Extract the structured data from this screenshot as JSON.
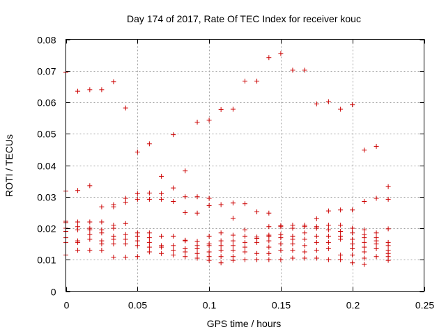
{
  "chart_data": {
    "type": "scatter",
    "title": "Day 174 of 2017, Rate Of TEC Index for receiver kouc",
    "xlabel": "GPS time / hours",
    "ylabel": "ROTI / TECUs",
    "xlim": [
      0,
      0.25
    ],
    "ylim": [
      0,
      0.08
    ],
    "x_ticks": [
      0,
      0.05,
      0.1,
      0.15,
      0.2,
      0.25
    ],
    "y_ticks": [
      0,
      0.01,
      0.02,
      0.03,
      0.04,
      0.05,
      0.06,
      0.07,
      0.08
    ],
    "x_tick_labels": [
      "0",
      "0.05",
      "0.1",
      "0.15",
      "0.2",
      "0.25"
    ],
    "y_tick_labels": [
      "0",
      "0.01",
      "0.02",
      "0.03",
      "0.04",
      "0.05",
      "0.06",
      "0.07",
      "0.08"
    ],
    "grid": true,
    "marker": "+",
    "marker_color": "#cc0000",
    "series": [
      {
        "points": [
          [
            0.0,
            0.0695
          ],
          [
            0.0,
            0.0318
          ],
          [
            0.0,
            0.0222
          ],
          [
            0.0,
            0.0218
          ],
          [
            0.0,
            0.02
          ],
          [
            0.0,
            0.019
          ],
          [
            0.0,
            0.017
          ],
          [
            0.0,
            0.0155
          ],
          [
            0.0,
            0.0115
          ],
          [
            0.0083,
            0.0635
          ],
          [
            0.0083,
            0.032
          ],
          [
            0.0083,
            0.022
          ],
          [
            0.0083,
            0.0205
          ],
          [
            0.0083,
            0.0195
          ],
          [
            0.0083,
            0.016
          ],
          [
            0.0083,
            0.0155
          ],
          [
            0.0083,
            0.013
          ],
          [
            0.0167,
            0.064
          ],
          [
            0.0167,
            0.0335
          ],
          [
            0.0167,
            0.022
          ],
          [
            0.0167,
            0.02
          ],
          [
            0.0167,
            0.0195
          ],
          [
            0.0167,
            0.018
          ],
          [
            0.0167,
            0.0165
          ],
          [
            0.0167,
            0.013
          ],
          [
            0.025,
            0.064
          ],
          [
            0.025,
            0.0268
          ],
          [
            0.025,
            0.022
          ],
          [
            0.025,
            0.0195
          ],
          [
            0.025,
            0.0185
          ],
          [
            0.025,
            0.016
          ],
          [
            0.025,
            0.015
          ],
          [
            0.025,
            0.013
          ],
          [
            0.0333,
            0.0665
          ],
          [
            0.0333,
            0.0275
          ],
          [
            0.0333,
            0.0268
          ],
          [
            0.0333,
            0.021
          ],
          [
            0.0333,
            0.02
          ],
          [
            0.0333,
            0.0175
          ],
          [
            0.0333,
            0.0165
          ],
          [
            0.0333,
            0.015
          ],
          [
            0.0333,
            0.0108
          ],
          [
            0.0417,
            0.0582
          ],
          [
            0.0417,
            0.0295
          ],
          [
            0.0417,
            0.0282
          ],
          [
            0.0417,
            0.0215
          ],
          [
            0.0417,
            0.018
          ],
          [
            0.0417,
            0.0165
          ],
          [
            0.0417,
            0.015
          ],
          [
            0.0417,
            0.0108
          ],
          [
            0.05,
            0.0442
          ],
          [
            0.05,
            0.031
          ],
          [
            0.05,
            0.0292
          ],
          [
            0.05,
            0.0185
          ],
          [
            0.05,
            0.0175
          ],
          [
            0.05,
            0.016
          ],
          [
            0.05,
            0.0145
          ],
          [
            0.05,
            0.011
          ],
          [
            0.0583,
            0.0468
          ],
          [
            0.0583,
            0.0312
          ],
          [
            0.0583,
            0.0292
          ],
          [
            0.0583,
            0.0185
          ],
          [
            0.0583,
            0.017
          ],
          [
            0.0583,
            0.0155
          ],
          [
            0.0583,
            0.014
          ],
          [
            0.0583,
            0.0125
          ],
          [
            0.0667,
            0.0365
          ],
          [
            0.0667,
            0.031
          ],
          [
            0.0667,
            0.0292
          ],
          [
            0.0667,
            0.0175
          ],
          [
            0.0667,
            0.0145
          ],
          [
            0.0667,
            0.014
          ],
          [
            0.0667,
            0.012
          ],
          [
            0.075,
            0.0497
          ],
          [
            0.075,
            0.0328
          ],
          [
            0.075,
            0.0285
          ],
          [
            0.075,
            0.0175
          ],
          [
            0.075,
            0.0145
          ],
          [
            0.075,
            0.013
          ],
          [
            0.075,
            0.0115
          ],
          [
            0.0833,
            0.0382
          ],
          [
            0.0833,
            0.03
          ],
          [
            0.0833,
            0.025
          ],
          [
            0.0833,
            0.0162
          ],
          [
            0.0833,
            0.016
          ],
          [
            0.0833,
            0.0135
          ],
          [
            0.0833,
            0.0125
          ],
          [
            0.0833,
            0.011
          ],
          [
            0.0917,
            0.0537
          ],
          [
            0.0917,
            0.03
          ],
          [
            0.0917,
            0.0248
          ],
          [
            0.0917,
            0.0158
          ],
          [
            0.0917,
            0.0145
          ],
          [
            0.0917,
            0.0135
          ],
          [
            0.0917,
            0.012
          ],
          [
            0.0917,
            0.0105
          ],
          [
            0.1,
            0.0543
          ],
          [
            0.1,
            0.0295
          ],
          [
            0.1,
            0.0272
          ],
          [
            0.1,
            0.0175
          ],
          [
            0.1,
            0.015
          ],
          [
            0.1,
            0.0145
          ],
          [
            0.1,
            0.0125
          ],
          [
            0.1,
            0.011
          ],
          [
            0.1,
            0.0098
          ],
          [
            0.1083,
            0.0577
          ],
          [
            0.1083,
            0.0275
          ],
          [
            0.1083,
            0.0185
          ],
          [
            0.1083,
            0.016
          ],
          [
            0.1083,
            0.0145
          ],
          [
            0.1083,
            0.013
          ],
          [
            0.1083,
            0.011
          ],
          [
            0.1083,
            0.009
          ],
          [
            0.1167,
            0.0578
          ],
          [
            0.1167,
            0.028
          ],
          [
            0.1167,
            0.0232
          ],
          [
            0.1167,
            0.0178
          ],
          [
            0.1167,
            0.016
          ],
          [
            0.1167,
            0.0145
          ],
          [
            0.1167,
            0.013
          ],
          [
            0.1167,
            0.011
          ],
          [
            0.1167,
            0.0098
          ],
          [
            0.125,
            0.0667
          ],
          [
            0.125,
            0.0278
          ],
          [
            0.125,
            0.0195
          ],
          [
            0.125,
            0.0175
          ],
          [
            0.125,
            0.0155
          ],
          [
            0.125,
            0.014
          ],
          [
            0.125,
            0.0125
          ],
          [
            0.125,
            0.01
          ],
          [
            0.1333,
            0.0667
          ],
          [
            0.1333,
            0.0252
          ],
          [
            0.1333,
            0.0172
          ],
          [
            0.1333,
            0.0168
          ],
          [
            0.1333,
            0.0155
          ],
          [
            0.1333,
            0.012
          ],
          [
            0.1333,
            0.01
          ],
          [
            0.1417,
            0.0742
          ],
          [
            0.1417,
            0.0248
          ],
          [
            0.1417,
            0.0205
          ],
          [
            0.1417,
            0.0178
          ],
          [
            0.1417,
            0.0175
          ],
          [
            0.1417,
            0.016
          ],
          [
            0.1417,
            0.014
          ],
          [
            0.1417,
            0.012
          ],
          [
            0.1417,
            0.01
          ],
          [
            0.15,
            0.0755
          ],
          [
            0.15,
            0.0208
          ],
          [
            0.15,
            0.0205
          ],
          [
            0.15,
            0.018
          ],
          [
            0.15,
            0.017
          ],
          [
            0.15,
            0.015
          ],
          [
            0.15,
            0.013
          ],
          [
            0.15,
            0.01
          ],
          [
            0.1583,
            0.0702
          ],
          [
            0.1583,
            0.021
          ],
          [
            0.1583,
            0.02
          ],
          [
            0.1583,
            0.0175
          ],
          [
            0.1583,
            0.0165
          ],
          [
            0.1583,
            0.015
          ],
          [
            0.1583,
            0.013
          ],
          [
            0.1583,
            0.0105
          ],
          [
            0.1667,
            0.0702
          ],
          [
            0.1667,
            0.021
          ],
          [
            0.1667,
            0.0205
          ],
          [
            0.1667,
            0.0185
          ],
          [
            0.1667,
            0.0165
          ],
          [
            0.1667,
            0.0145
          ],
          [
            0.1667,
            0.0125
          ],
          [
            0.1667,
            0.0105
          ],
          [
            0.175,
            0.0595
          ],
          [
            0.175,
            0.023
          ],
          [
            0.175,
            0.0205
          ],
          [
            0.175,
            0.02
          ],
          [
            0.175,
            0.0175
          ],
          [
            0.175,
            0.0155
          ],
          [
            0.175,
            0.013
          ],
          [
            0.175,
            0.0105
          ],
          [
            0.1833,
            0.0602
          ],
          [
            0.1833,
            0.0255
          ],
          [
            0.1833,
            0.021
          ],
          [
            0.1833,
            0.0195
          ],
          [
            0.1833,
            0.0175
          ],
          [
            0.1833,
            0.0155
          ],
          [
            0.1833,
            0.0135
          ],
          [
            0.1833,
            0.01
          ],
          [
            0.1917,
            0.0578
          ],
          [
            0.1917,
            0.0258
          ],
          [
            0.1917,
            0.021
          ],
          [
            0.1917,
            0.019
          ],
          [
            0.1917,
            0.0175
          ],
          [
            0.1917,
            0.0165
          ],
          [
            0.1917,
            0.0115
          ],
          [
            0.1917,
            0.01
          ],
          [
            0.2,
            0.0592
          ],
          [
            0.2,
            0.0258
          ],
          [
            0.2,
            0.02
          ],
          [
            0.2,
            0.0185
          ],
          [
            0.2,
            0.0165
          ],
          [
            0.2,
            0.015
          ],
          [
            0.2,
            0.0135
          ],
          [
            0.2,
            0.0115
          ],
          [
            0.2,
            0.009
          ],
          [
            0.2083,
            0.0448
          ],
          [
            0.2083,
            0.0285
          ],
          [
            0.2083,
            0.0195
          ],
          [
            0.2083,
            0.018
          ],
          [
            0.2083,
            0.017
          ],
          [
            0.2083,
            0.0155
          ],
          [
            0.2083,
            0.014
          ],
          [
            0.2083,
            0.0125
          ],
          [
            0.2083,
            0.0105
          ],
          [
            0.2083,
            0.0085
          ],
          [
            0.2167,
            0.046
          ],
          [
            0.2167,
            0.0295
          ],
          [
            0.2167,
            0.0185
          ],
          [
            0.2167,
            0.017
          ],
          [
            0.2167,
            0.016
          ],
          [
            0.2167,
            0.015
          ],
          [
            0.2167,
            0.0135
          ],
          [
            0.2167,
            0.011
          ],
          [
            0.225,
            0.0332
          ],
          [
            0.225,
            0.0292
          ],
          [
            0.225,
            0.0198
          ],
          [
            0.225,
            0.0155
          ],
          [
            0.225,
            0.0145
          ],
          [
            0.225,
            0.013
          ],
          [
            0.225,
            0.012
          ],
          [
            0.225,
            0.011
          ],
          [
            0.225,
            0.0098
          ]
        ]
      }
    ]
  }
}
